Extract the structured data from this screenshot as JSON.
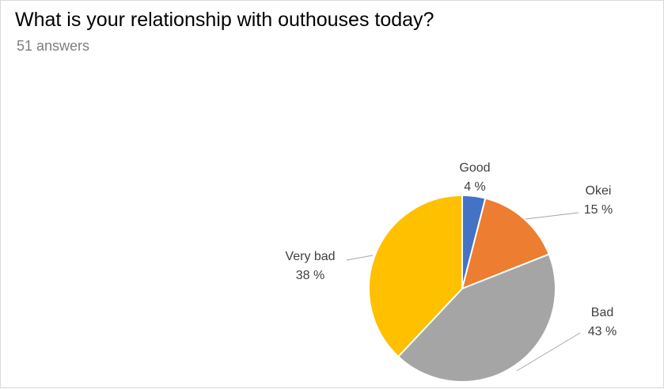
{
  "header": {
    "title": "What is your relationship with outhouses today?",
    "subtitle": "51 answers"
  },
  "chart_data": {
    "type": "pie",
    "title": "What is your relationship with outhouses today?",
    "subtitle": "51 answers",
    "slices": [
      {
        "label": "Good",
        "value": 4,
        "value_text": "4 %",
        "color": "#4472c4"
      },
      {
        "label": "Okei",
        "value": 15,
        "value_text": "15 %",
        "color": "#ed7d31"
      },
      {
        "label": "Bad",
        "value": 43,
        "value_text": "43 %",
        "color": "#a5a5a5"
      },
      {
        "label": "Very bad",
        "value": 38,
        "value_text": "38 %",
        "color": "#ffc000"
      }
    ],
    "start_angle": "12 o'clock",
    "direction": "clockwise",
    "data_labels": "outside with leader lines",
    "legend": "none"
  }
}
